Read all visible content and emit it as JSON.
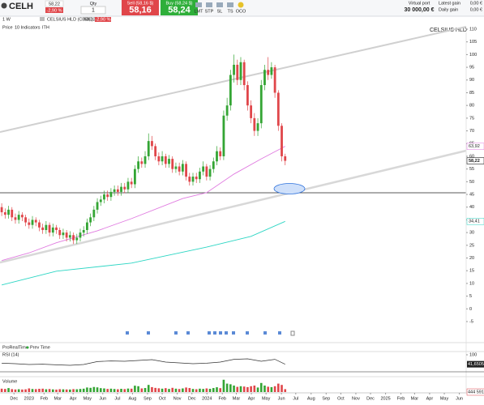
{
  "toolbar": {
    "symbol": "CELH",
    "last": "58,22",
    "change": "-2,90 %",
    "qty_label": "Qty",
    "qty": "1",
    "sell_label": "Sell (58,16 $)",
    "sell_price": "58,16",
    "buy_label": "Buy (58,24 $)",
    "buy_price": "58,24",
    "order_types": [
      "LMT",
      "STP",
      "SL",
      "TS",
      "OCO"
    ],
    "portfolio_label": "Virtual port",
    "portfolio_value": "30 000,00 €",
    "latest_gain_label": "Latest gain",
    "latest_gain": "0,00 €",
    "daily_gain_label": "Daily gain",
    "daily_gain": "0,00 €"
  },
  "chart_header": {
    "instrument": "CELSIUS HLD (CBOE)",
    "last": "58,22",
    "change": "-2,90 %",
    "interval": "1 W",
    "price_label": "Price",
    "indicators": "10 Indicators",
    "ith": "ITH",
    "sources": [
      "ProRealTime",
      "Prev Time"
    ]
  },
  "chart_data": {
    "type": "candlestick",
    "watermark": "CELSIUS HLD",
    "x": [
      -8,
      -7,
      -6,
      -5,
      -4,
      -3,
      -2,
      -1,
      0,
      1,
      2,
      3,
      4,
      5,
      6,
      7,
      8,
      9,
      10,
      11,
      12,
      13,
      14,
      15,
      16,
      17,
      18,
      19,
      20,
      21,
      22,
      23,
      24,
      25,
      26,
      27,
      28,
      29,
      30,
      31,
      32,
      33,
      34,
      35,
      36,
      37,
      38,
      39,
      40,
      41,
      42,
      43,
      44,
      45,
      46,
      47,
      48,
      49,
      50,
      51,
      52,
      53,
      54,
      55,
      56,
      57,
      58,
      59,
      60,
      61,
      62,
      63,
      64,
      65,
      66,
      67,
      68,
      69,
      70,
      71,
      72,
      73,
      74,
      75
    ],
    "open": [
      40,
      38,
      37,
      39,
      36,
      35,
      37,
      36,
      34,
      33,
      35,
      34,
      32,
      31,
      33,
      30,
      32,
      31,
      29,
      30,
      28,
      29,
      27,
      28,
      30,
      31,
      34,
      36,
      39,
      42,
      43,
      45,
      44,
      46,
      47,
      46,
      48,
      47,
      50,
      49,
      55,
      58,
      57,
      60,
      66,
      64,
      60,
      58,
      60,
      57,
      59,
      55,
      56,
      54,
      57,
      52,
      50,
      52,
      51,
      54,
      56,
      52,
      55,
      58,
      62,
      60,
      76,
      80,
      92,
      96,
      90,
      97,
      88,
      80,
      75,
      70,
      73,
      88,
      94,
      92,
      95,
      85,
      72,
      60
    ],
    "high": [
      41.5,
      39.5,
      40.5,
      40,
      37.5,
      38.5,
      38,
      37,
      35.5,
      36.5,
      36,
      35,
      33.5,
      34.5,
      34,
      33.5,
      33,
      32,
      31.5,
      31,
      30.5,
      30,
      29.5,
      31.5,
      32.5,
      35.5,
      37.5,
      40.5,
      43.5,
      44.5,
      46.5,
      46.5,
      47.5,
      48.5,
      48.5,
      49.5,
      49.5,
      51.5,
      51.5,
      56.5,
      60,
      59.5,
      62,
      69,
      68,
      65,
      61.5,
      62,
      61,
      60.5,
      60,
      57.5,
      57.5,
      58.5,
      58,
      53.5,
      53.5,
      53.5,
      55.5,
      58,
      57,
      56.5,
      59.5,
      64,
      63.5,
      78,
      83,
      94,
      100,
      98,
      99,
      98,
      89.5,
      82,
      77,
      75,
      90,
      96,
      99,
      97,
      96,
      86,
      73,
      61
    ],
    "low": [
      36.5,
      35.5,
      35.5,
      34.5,
      33.5,
      33.5,
      34.5,
      32.5,
      31.5,
      31.5,
      32.5,
      30.5,
      29.5,
      29.5,
      28.5,
      28.5,
      29.5,
      27.5,
      27.5,
      26.5,
      26.5,
      25.5,
      25.5,
      26.5,
      28.5,
      29.5,
      32.5,
      34.5,
      37.5,
      40.5,
      41.5,
      42.5,
      42.5,
      44.5,
      44.5,
      44.5,
      45.5,
      45.5,
      47.5,
      47.5,
      53.5,
      55.5,
      55.5,
      58.5,
      62.5,
      58.5,
      56.5,
      56.5,
      55.5,
      55.5,
      53.5,
      53.5,
      52.5,
      52.5,
      50.5,
      48.5,
      48.5,
      49.5,
      49.5,
      52.5,
      50.5,
      50.5,
      53.5,
      56.5,
      58.5,
      58.5,
      74,
      78,
      89,
      88,
      88,
      86,
      78,
      73,
      68,
      68,
      71,
      86,
      90,
      90.5,
      83,
      70,
      58,
      56.5
    ],
    "close": [
      38,
      37,
      39,
      36,
      35,
      37,
      36,
      34,
      33,
      35,
      34,
      32,
      31,
      33,
      30,
      32,
      31,
      29,
      30,
      28,
      29,
      27,
      28,
      30,
      31,
      34,
      36,
      39,
      42,
      43,
      45,
      44,
      46,
      47,
      46,
      48,
      47,
      50,
      49,
      55,
      58,
      57,
      60,
      66,
      64,
      60,
      58,
      60,
      57,
      59,
      55,
      56,
      54,
      57,
      52,
      50,
      52,
      51,
      54,
      56,
      52,
      55,
      58,
      62,
      60,
      76,
      80,
      92,
      96,
      90,
      97,
      88,
      80,
      75,
      70,
      73,
      88,
      94,
      92,
      95,
      85,
      72,
      60,
      58.22
    ],
    "close_label": "58,22",
    "up_color": "#34a534",
    "down_color": "#e0464a",
    "xlim": [
      -8.5,
      128
    ],
    "xticks": [
      {
        "value": -4.4,
        "label": "Dec"
      },
      {
        "value": 0,
        "label": "2023"
      },
      {
        "value": 4.4,
        "label": "Feb"
      },
      {
        "value": 8.4,
        "label": "Mar"
      },
      {
        "value": 12.9,
        "label": "Apr"
      },
      {
        "value": 17.1,
        "label": "May"
      },
      {
        "value": 21.6,
        "label": "Jun"
      },
      {
        "value": 25.9,
        "label": "Jul"
      },
      {
        "value": 30.3,
        "label": "Aug"
      },
      {
        "value": 34.7,
        "label": "Sep"
      },
      {
        "value": 39,
        "label": "Oct"
      },
      {
        "value": 43.4,
        "label": "Nov"
      },
      {
        "value": 47.7,
        "label": "Dec"
      },
      {
        "value": 52.1,
        "label": "2024"
      },
      {
        "value": 56.6,
        "label": "Feb"
      },
      {
        "value": 60.7,
        "label": "Mar"
      },
      {
        "value": 65.1,
        "label": "Apr"
      },
      {
        "value": 69.4,
        "label": "May"
      },
      {
        "value": 73.9,
        "label": "Jun"
      },
      {
        "value": 78.1,
        "label": "Jul"
      },
      {
        "value": 82.6,
        "label": "Aug"
      },
      {
        "value": 87,
        "label": "Sep"
      },
      {
        "value": 91.3,
        "label": "Oct"
      },
      {
        "value": 95.7,
        "label": "Nov"
      },
      {
        "value": 100,
        "label": "Dec"
      },
      {
        "value": 104.4,
        "label": "2025"
      },
      {
        "value": 108.9,
        "label": "Feb"
      },
      {
        "value": 112.9,
        "label": "Mar"
      },
      {
        "value": 117.3,
        "label": "Apr"
      },
      {
        "value": 121.6,
        "label": "May"
      },
      {
        "value": 126,
        "label": "Jun"
      }
    ],
    "ylim": [
      -5,
      110
    ],
    "yticks": [
      110,
      105,
      100,
      95,
      90,
      85,
      80,
      75,
      70,
      65,
      60,
      55,
      50,
      45,
      40,
      35,
      30,
      25,
      20,
      15,
      10,
      5,
      0,
      -5
    ],
    "overlays": [
      {
        "color": "#e07be0",
        "x": [
          -8,
          0,
          8,
          20,
          30,
          45,
          52,
          60,
          68,
          75
        ],
        "values": [
          19,
          22,
          26,
          30.7,
          35.5,
          43.4,
          45.7,
          53,
          59,
          63.92
        ],
        "value_label": "63,92"
      },
      {
        "color": "#2ed6c4",
        "x": [
          -8,
          8,
          30,
          52,
          65,
          75
        ],
        "values": [
          9.4,
          14.8,
          18,
          24.3,
          28.5,
          34.41
        ],
        "value_label": "34,41"
      }
    ],
    "rsi": {
      "title": "RSI (14)",
      "x": [
        -8,
        -4,
        0,
        4,
        8,
        12,
        16,
        20,
        24,
        28,
        32,
        36,
        40,
        44,
        48,
        52,
        56,
        60,
        64,
        68,
        72,
        75
      ],
      "values": [
        48,
        45,
        40,
        42,
        38,
        35,
        40,
        58,
        62,
        60,
        65,
        70,
        55,
        50,
        45,
        48,
        55,
        72,
        75,
        60,
        72,
        41.6505
      ],
      "value_label": "41,65050",
      "ylim": [
        0,
        100
      ],
      "yticks": [
        100
      ]
    },
    "volume": {
      "title": "Volume",
      "values": [
        520000,
        480000,
        610000,
        450000,
        400000,
        430000,
        390000,
        420000,
        560000,
        470000,
        450000,
        500000,
        520000,
        430000,
        470000,
        410000,
        380000,
        440000,
        420000,
        400000,
        390000,
        450000,
        430000,
        480000,
        520000,
        700000,
        650000,
        780000,
        720000,
        600000,
        560000,
        480000,
        520000,
        470000,
        430000,
        500000,
        460000,
        540000,
        520000,
        980000,
        900000,
        560000,
        620000,
        1100000,
        760000,
        640000,
        580000,
        520000,
        600000,
        480000,
        650000,
        520000,
        470000,
        560000,
        700000,
        620000,
        480000,
        440000,
        520000,
        480000,
        560000,
        500000,
        620000,
        740000,
        600000,
        1900000,
        1300000,
        1200000,
        1000000,
        800000,
        900000,
        850000,
        760000,
        900000,
        1000000,
        700000,
        1400000,
        1000000,
        820000,
        760000,
        900000,
        1300000,
        1100000,
        444591
      ],
      "value_label": "444 591",
      "ylim": [
        0,
        2000000
      ]
    }
  }
}
